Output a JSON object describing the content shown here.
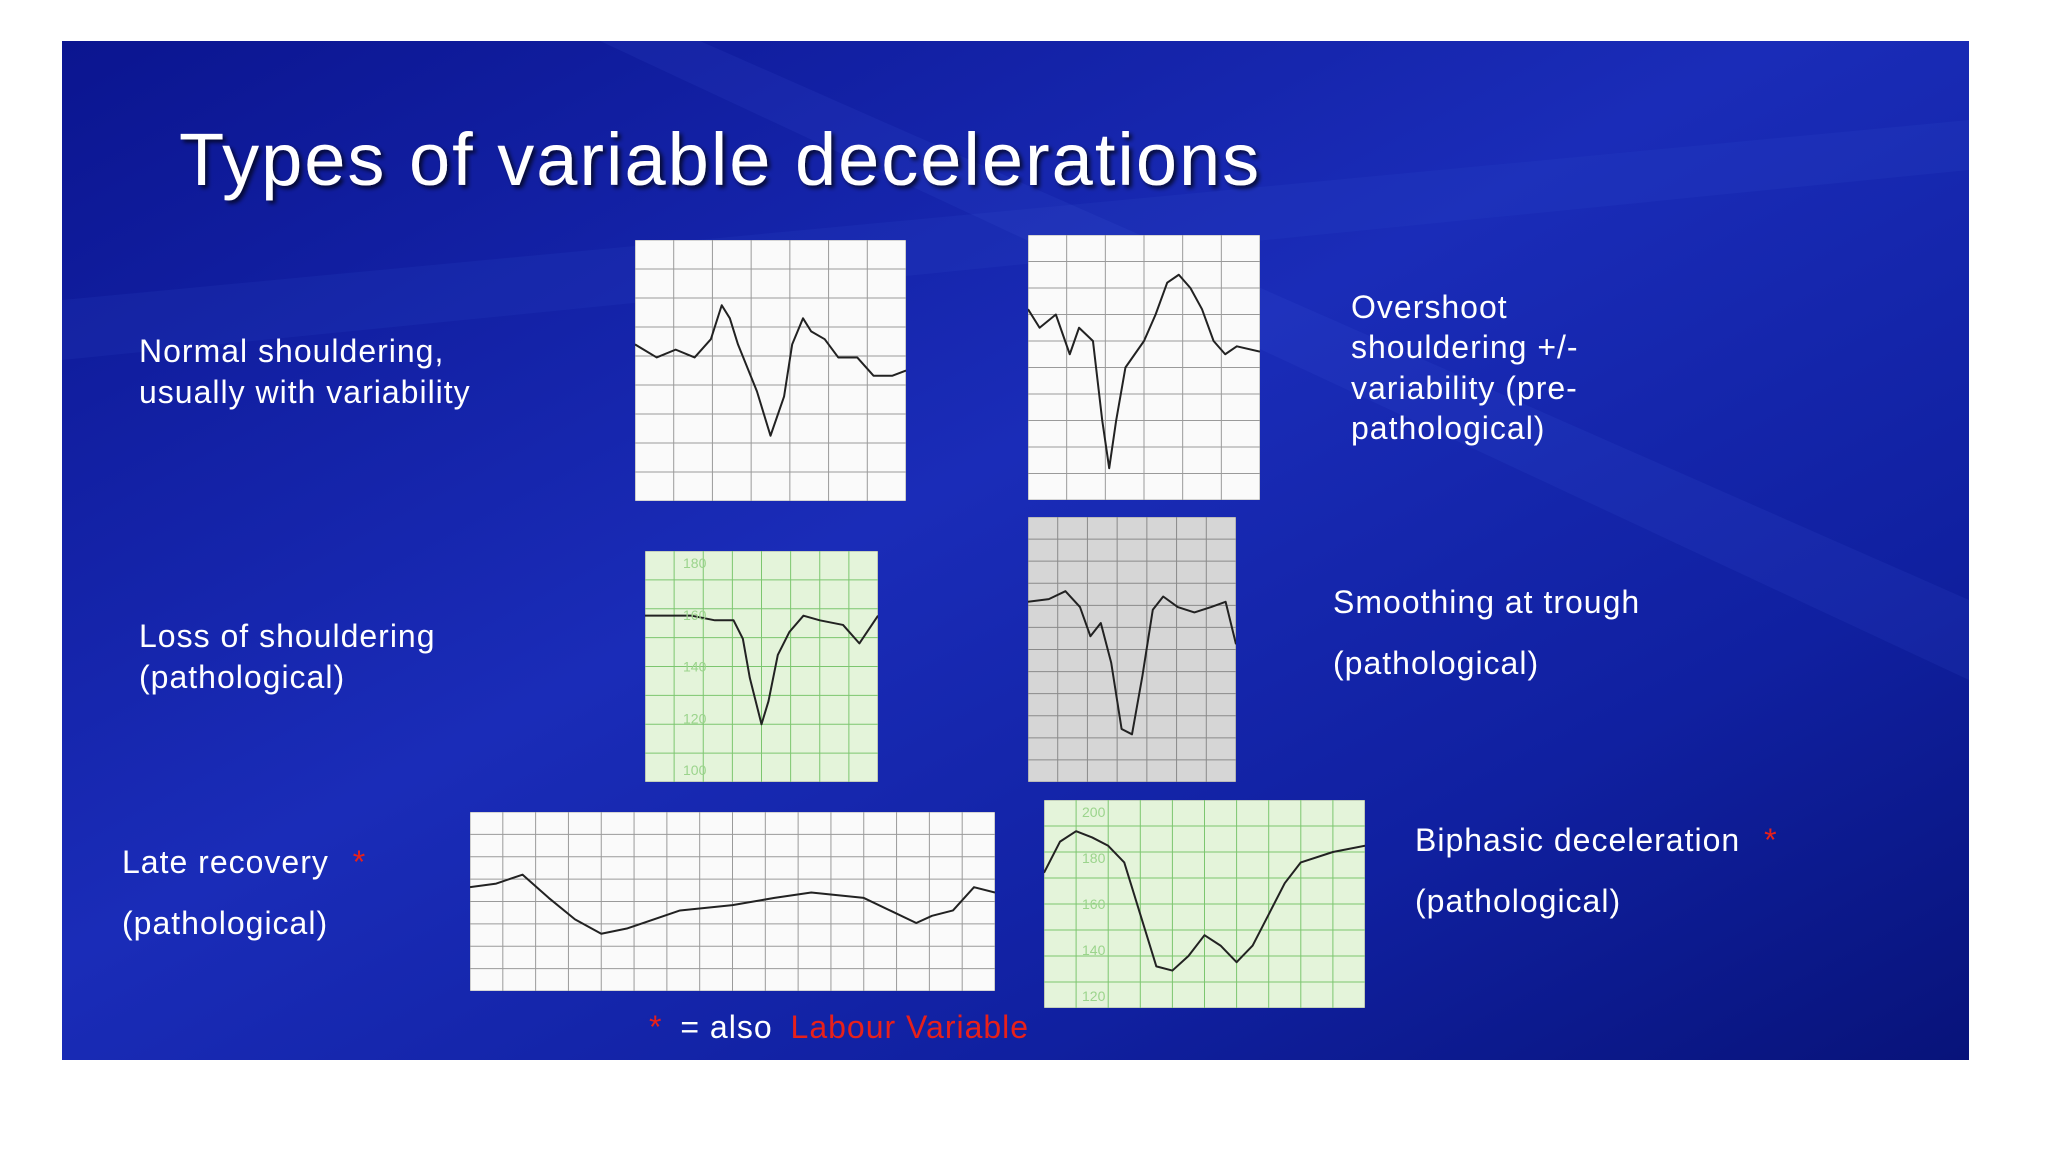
{
  "title": "Types of variable decelerations",
  "panels": [
    {
      "label": [
        "Normal shouldering,",
        "usually with variability"
      ]
    },
    {
      "label": [
        "Overshoot",
        "shouldering +/-",
        "variability (pre-",
        "pathological)"
      ]
    },
    {
      "label": [
        "Loss of shouldering",
        "(pathological)"
      ],
      "scale_labels": [
        "180",
        "160",
        "140",
        "120",
        "100"
      ]
    },
    {
      "label": [
        "Smoothing at trough",
        "(pathological)"
      ]
    },
    {
      "label": [
        "Late recovery",
        "(pathological)"
      ],
      "marker": "*"
    },
    {
      "label": [
        "Biphasic deceleration",
        "(pathological)"
      ],
      "marker": "*",
      "scale_labels": [
        "200",
        "180",
        "160",
        "140",
        "120"
      ]
    }
  ],
  "footnote": {
    "marker": "*",
    "text": "= also",
    "term": "Labour Variable"
  }
}
